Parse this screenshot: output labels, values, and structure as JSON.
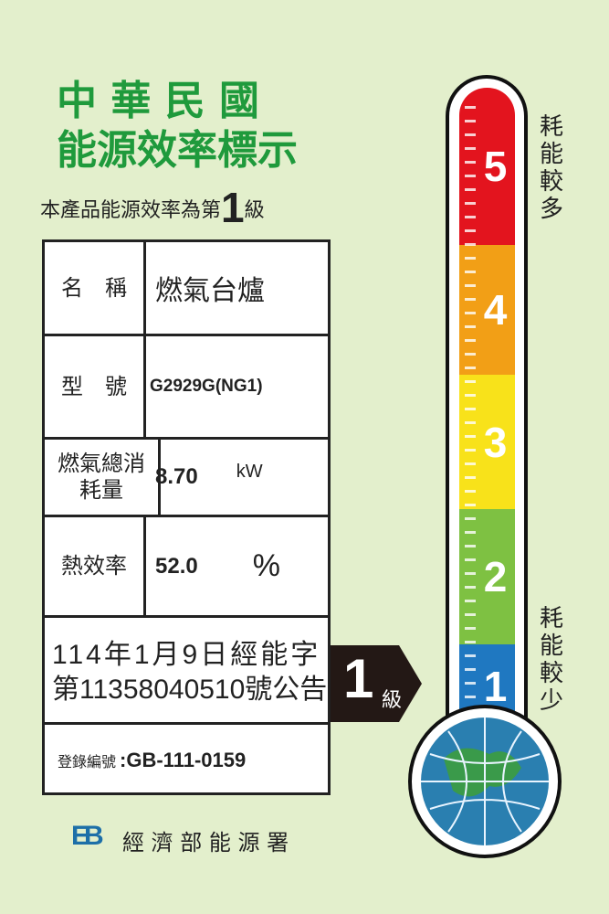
{
  "header": {
    "line1": "中 華 民 國",
    "line2": "能源效率標示",
    "grade_prefix": "本產品能源效率為第",
    "grade_value": "1",
    "grade_suffix": "級"
  },
  "table": {
    "name_label": "名　稱",
    "name_value": "燃氣台爐",
    "model_label": "型　號",
    "model_value": "G2929G(NG1)",
    "gas_label": "燃氣總消耗量",
    "gas_value": "8.70",
    "gas_unit": "kW",
    "eff_label": "熱效率",
    "eff_value": "52.0",
    "eff_unit": "%",
    "announce_line1": "114年1月9日經能字",
    "announce_line2": "第11358040510號公告",
    "reg_label": "登錄編號",
    "reg_value": ":GB-111-0159"
  },
  "arrow": {
    "grade": "1",
    "suffix": "級"
  },
  "scale": {
    "top_label": "耗能較多",
    "bottom_label": "耗能較少",
    "levels": [
      {
        "n": "5",
        "color": "#e3141e"
      },
      {
        "n": "4",
        "color": "#f29f16"
      },
      {
        "n": "3",
        "color": "#f8e21a"
      },
      {
        "n": "2",
        "color": "#7ec142"
      },
      {
        "n": "1",
        "color": "#1f78c1"
      }
    ],
    "current_level": 1
  },
  "footer": {
    "logo": "EB",
    "org": "經 濟 部 能 源 署"
  }
}
